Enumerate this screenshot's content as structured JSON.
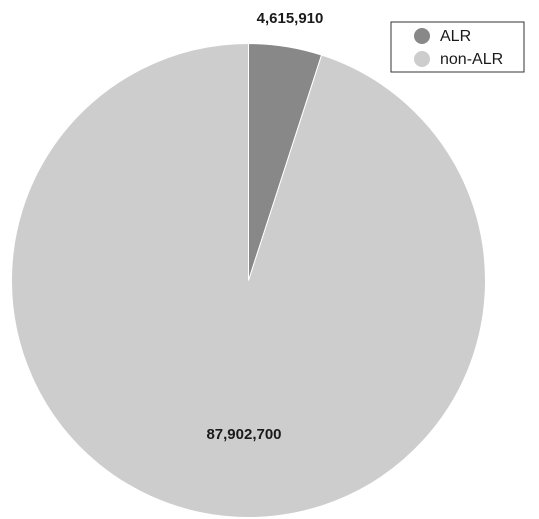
{
  "chart_data": {
    "type": "pie",
    "categories": [
      "ALR",
      "non-ALR"
    ],
    "values": [
      4615910,
      87902700
    ],
    "value_labels": [
      "4,615,910",
      "87,902,700"
    ],
    "colors": [
      "#878887",
      "#cdcdcd"
    ],
    "legend": {
      "placement": "top-right",
      "entries": [
        "ALR",
        "non-ALR"
      ]
    },
    "start_angle": "12 o'clock",
    "direction": "clockwise"
  }
}
